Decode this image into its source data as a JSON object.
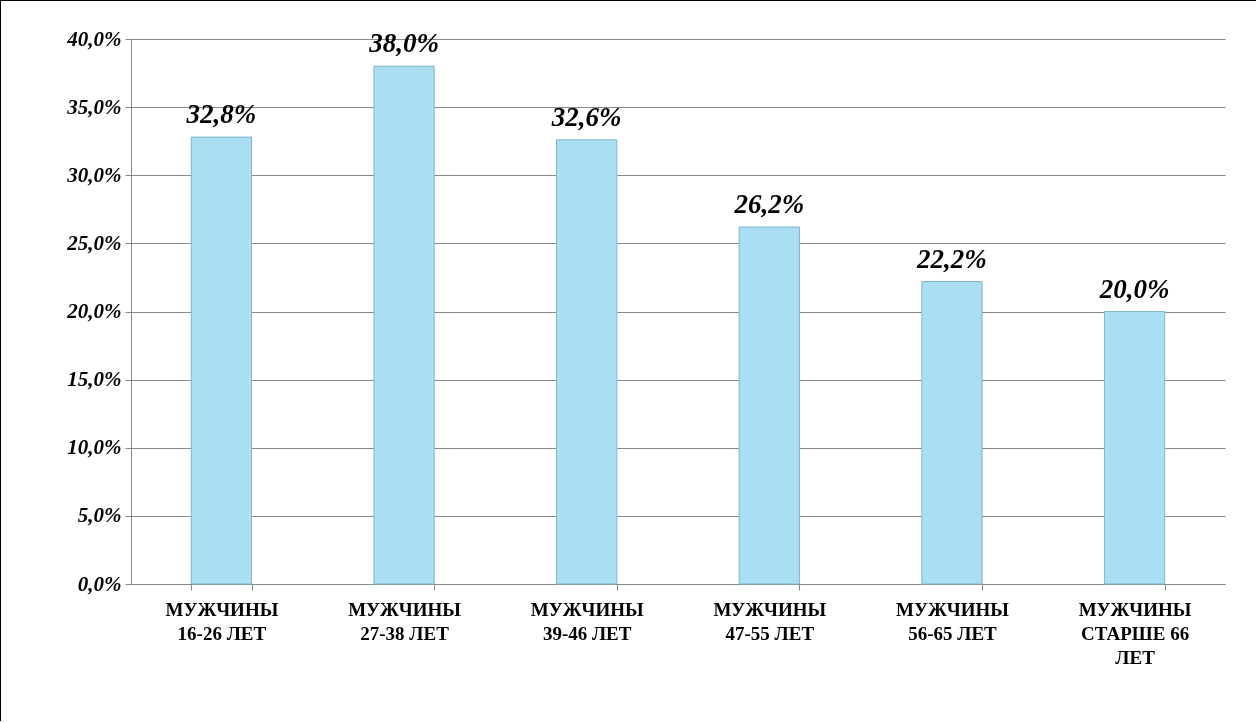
{
  "chart_data": {
    "type": "bar",
    "categories": [
      "МУЖЧИНЫ 16-26 ЛЕТ",
      "МУЖЧИНЫ 27-38 ЛЕТ",
      "МУЖЧИНЫ 39-46 ЛЕТ",
      "МУЖЧИНЫ 47-55 ЛЕТ",
      "МУЖЧИНЫ 56-65 ЛЕТ",
      "МУЖЧИНЫ СТАРШЕ 66 ЛЕТ"
    ],
    "values": [
      32.8,
      38.0,
      32.6,
      26.2,
      22.2,
      20.0
    ],
    "value_labels": [
      "32,8%",
      "38,0%",
      "32,6%",
      "26,2%",
      "22,2%",
      "20,0%"
    ],
    "color": "#a9def3",
    "ylim": [
      0,
      40
    ],
    "yticks": [
      {
        "value": 0,
        "label": "0,0%"
      },
      {
        "value": 5,
        "label": "5,0%"
      },
      {
        "value": 10,
        "label": "10,0%"
      },
      {
        "value": 15,
        "label": "15,0%"
      },
      {
        "value": 20,
        "label": "20,0%"
      },
      {
        "value": 25,
        "label": "25,0%"
      },
      {
        "value": 30,
        "label": "30,0%"
      },
      {
        "value": 35,
        "label": "35,0%"
      },
      {
        "value": 40,
        "label": "40,0%"
      }
    ],
    "grid": "y"
  }
}
